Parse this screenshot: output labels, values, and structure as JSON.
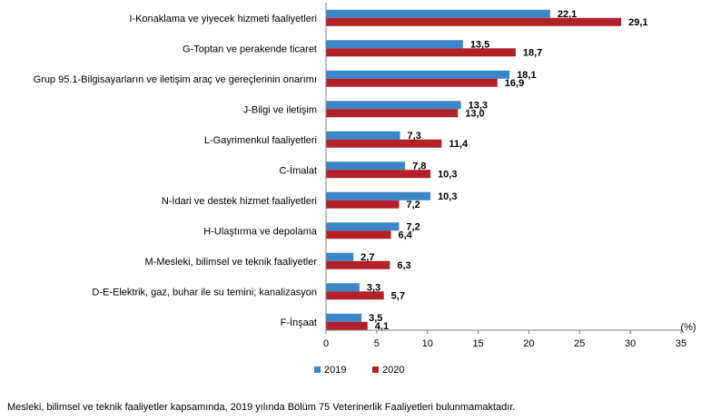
{
  "chart_data": {
    "type": "bar",
    "orientation": "horizontal",
    "categories": [
      "I-Konaklama ve yiyecek hizmeti faaliyetleri",
      "G-Toptan ve perakende ticaret",
      "Grup 95.1-Bilgisayarların ve iletişim araç ve gereçlerinin onarımı",
      "J-Bilgi ve iletişim",
      "L-Gayrimenkul faaliyetleri",
      "C-İmalat",
      "N-İdari ve destek hizmet faaliyetleri",
      "H-Ulaştırma ve depolama",
      "M-Mesleki, bilimsel ve teknik faaliyetler",
      "D-E-Elektrik, gaz, buhar ile su temini; kanalizasyon",
      "F-İnşaat"
    ],
    "series": [
      {
        "name": "2019",
        "color": "#3a86c8",
        "values": [
          22.1,
          13.5,
          18.1,
          13.3,
          7.3,
          7.8,
          10.3,
          7.2,
          2.7,
          3.3,
          3.5
        ],
        "labels": [
          "22,1",
          "13,5",
          "18,1",
          "13,3",
          "7,3",
          "7,8",
          "10,3",
          "7,2",
          "2,7",
          "3,3",
          "3,5"
        ]
      },
      {
        "name": "2020",
        "color": "#b22028",
        "values": [
          29.1,
          18.7,
          16.9,
          13.0,
          11.4,
          10.3,
          7.2,
          6.4,
          6.3,
          5.7,
          4.1
        ],
        "labels": [
          "29,1",
          "18,7",
          "16,9",
          "13,0",
          "11,4",
          "10,3",
          "7,2",
          "6,4",
          "6,3",
          "5,7",
          "4,1"
        ]
      }
    ],
    "xlim": [
      0,
      35
    ],
    "xticks": [
      0,
      5,
      10,
      15,
      20,
      25,
      30,
      35
    ],
    "xticklabels": [
      "0",
      "5",
      "10",
      "15",
      "20",
      "25",
      "30",
      "35"
    ],
    "unit": "(%)",
    "legend_position": "bottom-left",
    "grid": false
  },
  "footnote": "Mesleki, bilimsel ve teknik faaliyetler kapsamında, 2019 yılında Bölüm 75 Veterinerlik Faaliyetleri bulunmamaktadır."
}
